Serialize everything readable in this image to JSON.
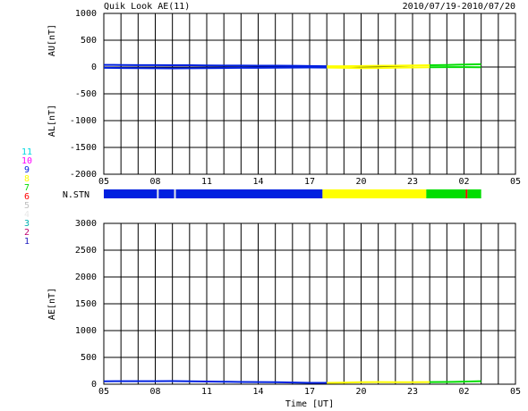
{
  "title": "Quik Look AE(11)",
  "date_range": "2010/07/19-2010/07/20",
  "stations": [
    {
      "name": "11",
      "color": "#00d8e0"
    },
    {
      "name": "10",
      "color": "#ff00ff"
    },
    {
      "name": "9",
      "color": "#0020e0"
    },
    {
      "name": "8",
      "color": "#ffff00"
    },
    {
      "name": "7",
      "color": "#00dd00"
    },
    {
      "name": "6",
      "color": "#ff0000"
    },
    {
      "name": "5",
      "color": "#c0c0c0"
    },
    {
      "name": "4",
      "color": "#e8e8e8"
    },
    {
      "name": "3",
      "color": "#00b0b0"
    },
    {
      "name": "2",
      "color": "#c00070"
    },
    {
      "name": "1",
      "color": "#2020c0"
    }
  ],
  "n_stn": {
    "label": "N.STN",
    "segments": [
      {
        "start": 0,
        "end": 3.1,
        "value": 9
      },
      {
        "start": 3.1,
        "end": 3.2,
        "value": 4
      },
      {
        "start": 3.2,
        "end": 4.1,
        "value": 9
      },
      {
        "start": 4.1,
        "end": 4.2,
        "value": 4
      },
      {
        "start": 4.2,
        "end": 12.75,
        "value": 9
      },
      {
        "start": 12.75,
        "end": 18.8,
        "value": 8
      },
      {
        "start": 18.8,
        "end": 21.1,
        "value": 7
      },
      {
        "start": 21.1,
        "end": 21.2,
        "value": 6
      },
      {
        "start": 21.2,
        "end": 22,
        "value": 7
      }
    ]
  },
  "chart_data": [
    {
      "type": "line",
      "y_labels": [
        "AU[nT]",
        "AL[nT]"
      ],
      "x": [
        0,
        1,
        2,
        3,
        4,
        5,
        6,
        7,
        8,
        9,
        10,
        11,
        12,
        13,
        14,
        15,
        16,
        17,
        18,
        19,
        20,
        21,
        22
      ],
      "series": [
        {
          "values": [
            40,
            38,
            36,
            35,
            34,
            33,
            30,
            28,
            27,
            26,
            25,
            22,
            18,
            15,
            14,
            18,
            22,
            25,
            30,
            34,
            38,
            45,
            52
          ]
        },
        {
          "values": [
            -15,
            -18,
            -20,
            -22,
            -25,
            -22,
            -20,
            -18,
            -15,
            -14,
            -12,
            -10,
            -8,
            -10,
            -15,
            -20,
            -18,
            -12,
            -8,
            -5,
            -3,
            -2,
            -5
          ]
        }
      ],
      "xlim": [
        0,
        24
      ],
      "xticks": [
        {
          "value": 0,
          "label": "05"
        },
        {
          "value": 3,
          "label": "08"
        },
        {
          "value": 6,
          "label": "11"
        },
        {
          "value": 9,
          "label": "14"
        },
        {
          "value": 12,
          "label": "17"
        },
        {
          "value": 15,
          "label": "20"
        },
        {
          "value": 18,
          "label": "23"
        },
        {
          "value": 21,
          "label": "02"
        },
        {
          "value": 24,
          "label": "05"
        }
      ],
      "xgrid": [
        0,
        1,
        2,
        3,
        4,
        5,
        6,
        7,
        8,
        9,
        10,
        11,
        12,
        13,
        14,
        15,
        16,
        17,
        18,
        19,
        20,
        21,
        22,
        23,
        24
      ],
      "ylim": [
        -2000,
        1000
      ],
      "yticks": [
        1000,
        500,
        0,
        -500,
        -1000,
        -1500,
        -2000
      ]
    },
    {
      "type": "line",
      "y_labels": [
        "AE[nT]"
      ],
      "x_label": "Time [UT]",
      "x": [
        0,
        1,
        2,
        3,
        4,
        5,
        6,
        7,
        8,
        9,
        10,
        11,
        12,
        13,
        14,
        15,
        16,
        17,
        18,
        19,
        20,
        21,
        22
      ],
      "series": [
        {
          "values": [
            55,
            56,
            56,
            57,
            59,
            55,
            50,
            46,
            42,
            40,
            37,
            32,
            26,
            25,
            29,
            38,
            40,
            37,
            38,
            39,
            41,
            47,
            57
          ]
        }
      ],
      "xlim": [
        0,
        24
      ],
      "xticks": [
        {
          "value": 0,
          "label": "05"
        },
        {
          "value": 3,
          "label": "08"
        },
        {
          "value": 6,
          "label": "11"
        },
        {
          "value": 9,
          "label": "14"
        },
        {
          "value": 12,
          "label": "17"
        },
        {
          "value": 15,
          "label": "20"
        },
        {
          "value": 18,
          "label": "23"
        },
        {
          "value": 21,
          "label": "02"
        },
        {
          "value": 24,
          "label": "05"
        }
      ],
      "xgrid": [
        0,
        1,
        2,
        3,
        4,
        5,
        6,
        7,
        8,
        9,
        10,
        11,
        12,
        13,
        14,
        15,
        16,
        17,
        18,
        19,
        20,
        21,
        22,
        23,
        24
      ],
      "ylim": [
        0,
        3000
      ],
      "yticks": [
        3000,
        2500,
        2000,
        1500,
        1000,
        500,
        0
      ]
    }
  ]
}
